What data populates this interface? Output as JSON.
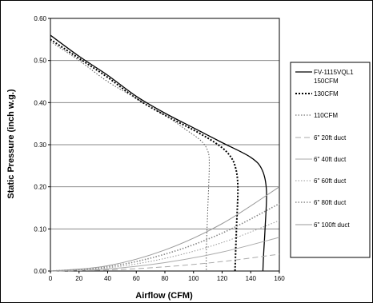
{
  "chart_data": {
    "type": "line",
    "xlabel": "Airflow (CFM)",
    "ylabel": "Static Pressure (inch w.g.)",
    "xlim": [
      0,
      160
    ],
    "ylim": [
      0,
      0.6
    ],
    "x_ticks": [
      "0",
      "20",
      "40",
      "60",
      "80",
      "100",
      "120",
      "140",
      "160"
    ],
    "y_ticks": [
      "0.00",
      "0.10",
      "0.20",
      "0.30",
      "0.40",
      "0.50",
      "0.60"
    ],
    "grid": "horizontal",
    "legend_placement": "right",
    "series": [
      {
        "name": "FV-1115VQL1 150CFM",
        "label_lines": [
          "FV-1115VQL1",
          "150CFM"
        ],
        "style": "solid",
        "color": "#000000",
        "width": 1.3,
        "points": [
          [
            0,
            0.56
          ],
          [
            20,
            0.51
          ],
          [
            40,
            0.465
          ],
          [
            60,
            0.415
          ],
          [
            80,
            0.375
          ],
          [
            100,
            0.34
          ],
          [
            120,
            0.305
          ],
          [
            140,
            0.27
          ],
          [
            148,
            0.24
          ],
          [
            151,
            0.19
          ],
          [
            150,
            0.1
          ],
          [
            149,
            0.04
          ],
          [
            148.5,
            0
          ]
        ]
      },
      {
        "name": "130CFM",
        "label_lines": [
          "130CFM"
        ],
        "style": "bold-dotted",
        "color": "#000000",
        "width": 2.0,
        "points": [
          [
            0,
            0.55
          ],
          [
            20,
            0.505
          ],
          [
            40,
            0.46
          ],
          [
            60,
            0.41
          ],
          [
            80,
            0.37
          ],
          [
            100,
            0.335
          ],
          [
            115,
            0.305
          ],
          [
            124,
            0.28
          ],
          [
            129,
            0.25
          ],
          [
            131,
            0.2
          ],
          [
            130,
            0.1
          ],
          [
            129,
            0
          ]
        ]
      },
      {
        "name": "110CFM",
        "label_lines": [
          "110CFM"
        ],
        "style": "dotted",
        "color": "#555555",
        "width": 1.0,
        "points": [
          [
            0,
            0.545
          ],
          [
            20,
            0.5
          ],
          [
            40,
            0.45
          ],
          [
            60,
            0.41
          ],
          [
            80,
            0.37
          ],
          [
            95,
            0.335
          ],
          [
            105,
            0.31
          ],
          [
            110,
            0.285
          ],
          [
            111,
            0.25
          ],
          [
            110,
            0.15
          ],
          [
            109,
            0.05
          ],
          [
            109,
            0
          ]
        ]
      },
      {
        "name": "6\" 20ft duct",
        "label_lines": [
          "6\" 20ft duct"
        ],
        "style": "dashed",
        "color": "#aaaaaa",
        "width": 1.0,
        "points": [
          [
            0,
            0
          ],
          [
            40,
            0.0025
          ],
          [
            80,
            0.01
          ],
          [
            120,
            0.0225
          ],
          [
            160,
            0.04
          ]
        ]
      },
      {
        "name": "6\" 40ft duct",
        "label_lines": [
          "6\" 40ft duct"
        ],
        "style": "solid",
        "color": "#aaaaaa",
        "width": 1.0,
        "points": [
          [
            0,
            0
          ],
          [
            40,
            0.005
          ],
          [
            80,
            0.02
          ],
          [
            120,
            0.045
          ],
          [
            160,
            0.08
          ]
        ]
      },
      {
        "name": "6\" 60ft duct",
        "label_lines": [
          "6\" 60ft duct"
        ],
        "style": "dotted",
        "color": "#999999",
        "width": 1.0,
        "points": [
          [
            0,
            0
          ],
          [
            40,
            0.0075
          ],
          [
            80,
            0.03
          ],
          [
            120,
            0.0675
          ],
          [
            160,
            0.12
          ]
        ]
      },
      {
        "name": "6\" 80ft duct",
        "label_lines": [
          "6\" 80ft duct"
        ],
        "style": "dotted",
        "color": "#888888",
        "width": 1.6,
        "points": [
          [
            0,
            0
          ],
          [
            40,
            0.01
          ],
          [
            80,
            0.04
          ],
          [
            120,
            0.09
          ],
          [
            160,
            0.16
          ]
        ]
      },
      {
        "name": "6\" 100ft duct",
        "label_lines": [
          "6\" 100ft duct"
        ],
        "style": "solid",
        "color": "#999999",
        "width": 1.0,
        "points": [
          [
            0,
            0
          ],
          [
            40,
            0.0125
          ],
          [
            80,
            0.05
          ],
          [
            120,
            0.1125
          ],
          [
            160,
            0.2
          ]
        ]
      }
    ]
  }
}
